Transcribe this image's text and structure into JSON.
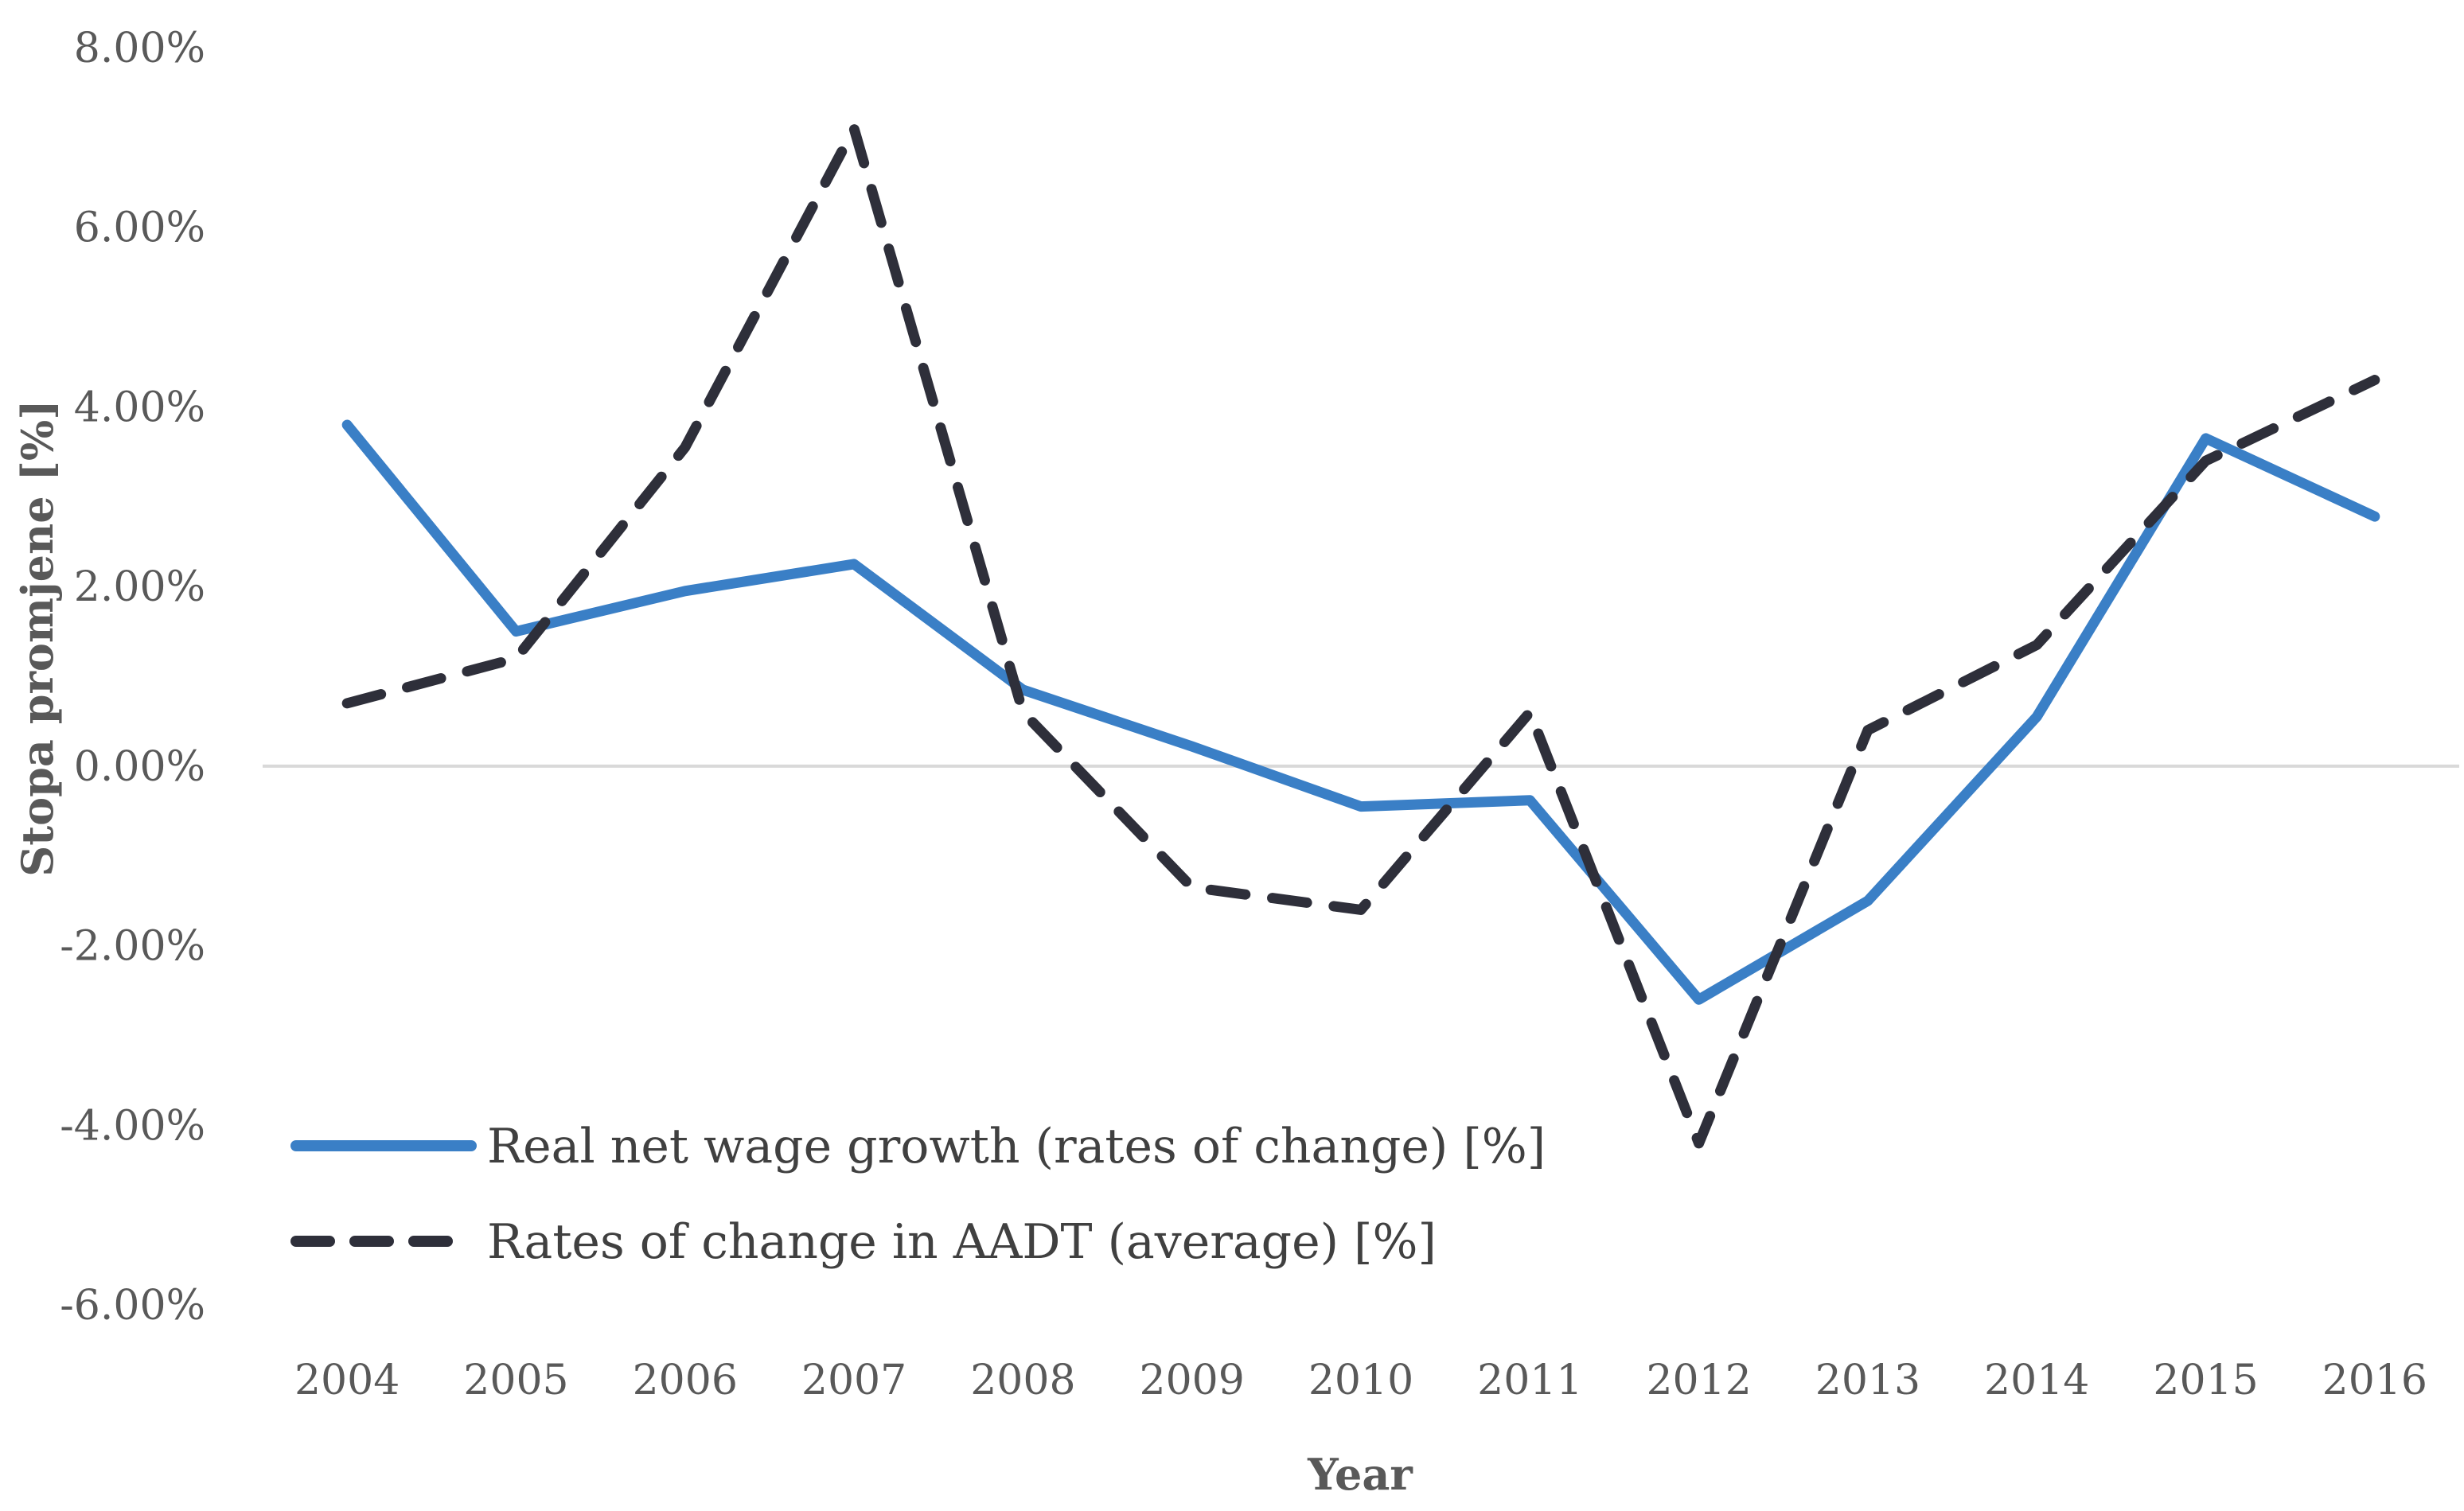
{
  "chart_data": {
    "type": "line",
    "title": "",
    "xlabel": "Year",
    "ylabel": "Stopa promjene [%]",
    "categories": [
      "2004",
      "2005",
      "2006",
      "2007",
      "2008",
      "2009",
      "2010",
      "2011",
      "2012",
      "2013",
      "2014",
      "2015",
      "2016"
    ],
    "ylim": [
      -6,
      8
    ],
    "yticks": [
      8,
      6,
      4,
      2,
      0,
      -2,
      -4,
      -6
    ],
    "ytick_labels": [
      "8.00%",
      "6.00%",
      "4.00%",
      "2.00%",
      "0.00%",
      "-2.00%",
      "-4.00%",
      "-6.00%"
    ],
    "grid": false,
    "zero_line": true,
    "legend_position": "bottom-left",
    "series": [
      {
        "name": "Real net wage growth (rates of change) [%]",
        "values": [
          3.8,
          1.5,
          1.95,
          2.25,
          0.85,
          0.22,
          -0.45,
          -0.38,
          -2.6,
          -1.5,
          0.55,
          3.65,
          2.78
        ],
        "color": "#3a7fc6",
        "style": "solid"
      },
      {
        "name": "Rates of change in AADT (average) [%]",
        "values": [
          0.7,
          1.2,
          3.55,
          7.1,
          0.6,
          -1.35,
          -1.6,
          0.6,
          -4.2,
          0.4,
          1.35,
          3.4,
          4.3
        ],
        "color": "#2e2f3a",
        "style": "dashed"
      }
    ]
  }
}
